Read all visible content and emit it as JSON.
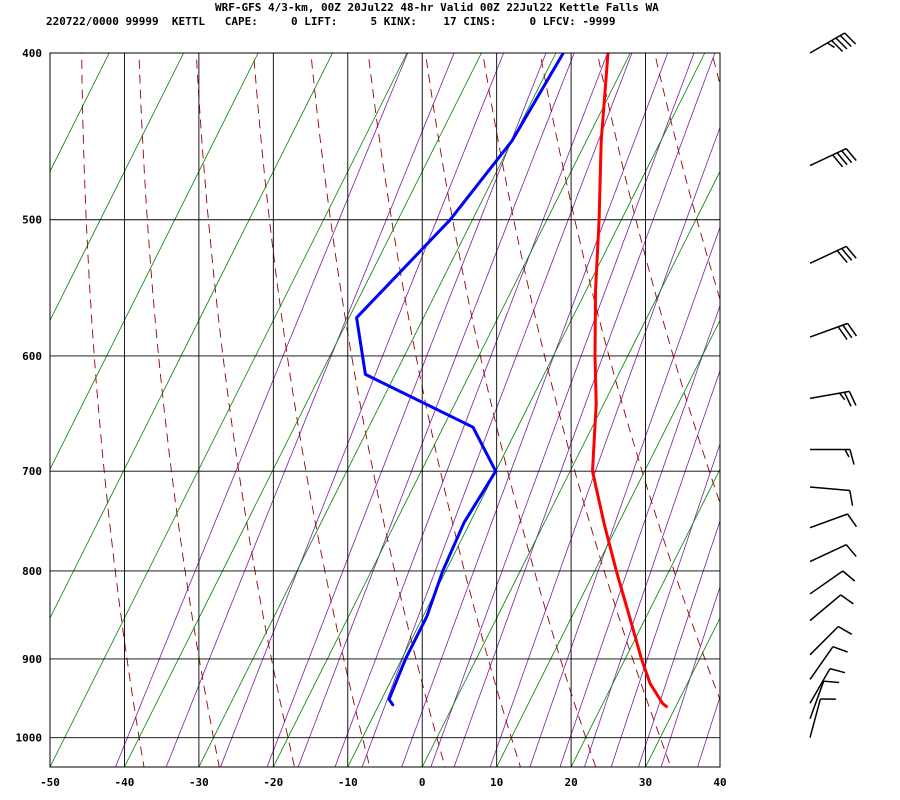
{
  "header": {
    "title": "WRF-GFS 4/3-km, 00Z 20Jul22 48-hr Valid 00Z 22Jul22 Kettle Falls WA",
    "stats_line": "220722/0000 99999  KETTL   CAPE:     0 LIFT:     5 KINX:    17 CINS:     0 LFCV: -9999"
  },
  "chart_data": {
    "type": "skew-t",
    "x_axis": {
      "label": "",
      "ticks": [
        -50,
        -40,
        -30,
        -20,
        -10,
        0,
        10,
        20,
        30,
        40
      ],
      "range": [
        -50,
        40
      ],
      "units": "deg C"
    },
    "y_axis": {
      "label": "",
      "ticks": [
        400,
        500,
        600,
        700,
        800,
        900,
        1000
      ],
      "range": [
        400,
        1040
      ],
      "scale": "log-pressure",
      "units": "hPa"
    },
    "grid": true,
    "background_lines": {
      "isotherms": {
        "color": "#008000",
        "style": "solid"
      },
      "dry_adiabats": {
        "color": "#990000",
        "style": "dashed"
      },
      "mixing_ratio": {
        "color": "#7b1fa2",
        "style": "solid"
      }
    },
    "series": [
      {
        "color": "#ff0000",
        "points": [
          {
            "p": 400,
            "t": -23
          },
          {
            "p": 450,
            "t": -18
          },
          {
            "p": 500,
            "t": -13
          },
          {
            "p": 550,
            "t": -8.7
          },
          {
            "p": 600,
            "t": -4.4
          },
          {
            "p": 640,
            "t": -1.0
          },
          {
            "p": 700,
            "t": 3.0
          },
          {
            "p": 750,
            "t": 8.0
          },
          {
            "p": 800,
            "t": 12.9
          },
          {
            "p": 850,
            "t": 17.7
          },
          {
            "p": 900,
            "t": 22.2
          },
          {
            "p": 930,
            "t": 25.0
          },
          {
            "p": 955,
            "t": 28.0
          },
          {
            "p": 960,
            "t": 28.9
          }
        ]
      },
      {
        "color": "#0000ff",
        "points": [
          {
            "p": 400,
            "t": -29
          },
          {
            "p": 450,
            "t": -30
          },
          {
            "p": 500,
            "t": -33
          },
          {
            "p": 570,
            "t": -39
          },
          {
            "p": 615,
            "t": -34
          },
          {
            "p": 660,
            "t": -16
          },
          {
            "p": 700,
            "t": -10
          },
          {
            "p": 750,
            "t": -10.8
          },
          {
            "p": 800,
            "t": -10.4
          },
          {
            "p": 850,
            "t": -9.5
          },
          {
            "p": 900,
            "t": -9.5
          },
          {
            "p": 950,
            "t": -9.0
          },
          {
            "p": 958,
            "t": -8.0
          }
        ]
      }
    ],
    "wind_barbs": [
      {
        "p": 400,
        "dir": 240,
        "speed": 45
      },
      {
        "p": 465,
        "dir": 245,
        "speed": 40
      },
      {
        "p": 530,
        "dir": 245,
        "speed": 30
      },
      {
        "p": 585,
        "dir": 250,
        "speed": 30
      },
      {
        "p": 635,
        "dir": 260,
        "speed": 25
      },
      {
        "p": 680,
        "dir": 270,
        "speed": 15
      },
      {
        "p": 715,
        "dir": 275,
        "speed": 10
      },
      {
        "p": 755,
        "dir": 250,
        "speed": 10
      },
      {
        "p": 790,
        "dir": 245,
        "speed": 10
      },
      {
        "p": 825,
        "dir": 235,
        "speed": 10
      },
      {
        "p": 855,
        "dir": 230,
        "speed": 10
      },
      {
        "p": 895,
        "dir": 225,
        "speed": 10
      },
      {
        "p": 925,
        "dir": 215,
        "speed": 10
      },
      {
        "p": 955,
        "dir": 210,
        "speed": 10
      },
      {
        "p": 975,
        "dir": 200,
        "speed": 10
      },
      {
        "p": 1000,
        "dir": 195,
        "speed": 10
      }
    ]
  }
}
